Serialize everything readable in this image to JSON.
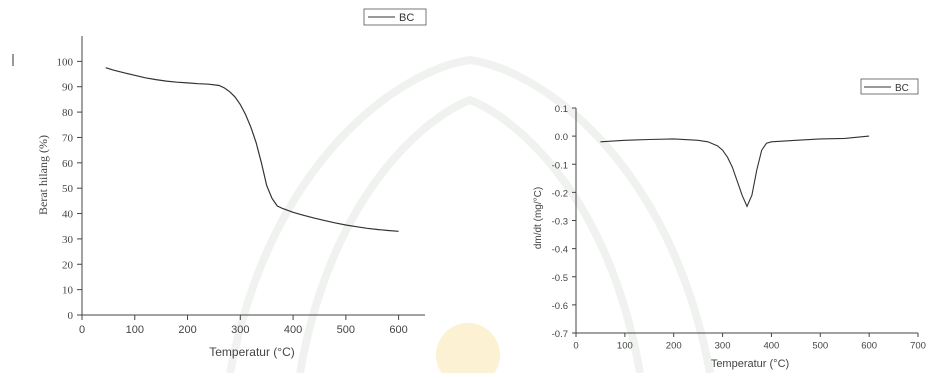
{
  "chart_data": [
    {
      "type": "line",
      "title": "",
      "xlabel": "Temperatur (°C)",
      "ylabel": "Berat hilang (%)",
      "xlim": [
        0,
        650
      ],
      "ylim": [
        0,
        110
      ],
      "x_ticks": [
        "0",
        "100",
        "200",
        "300",
        "400",
        "500",
        "600"
      ],
      "y_ticks": [
        "0",
        "10",
        "20",
        "30",
        "40",
        "50",
        "60",
        "70",
        "80",
        "90",
        "100"
      ],
      "legend": {
        "position": "top-center",
        "entries": [
          "BC"
        ]
      },
      "grid": false,
      "series": [
        {
          "name": "BC",
          "color": "#333333",
          "x": [
            45,
            60,
            80,
            100,
            120,
            140,
            160,
            180,
            200,
            220,
            240,
            260,
            270,
            280,
            290,
            300,
            310,
            320,
            330,
            340,
            350,
            360,
            370,
            380,
            400,
            420,
            440,
            460,
            480,
            500,
            520,
            540,
            560,
            580,
            600
          ],
          "y": [
            97.5,
            96.5,
            95.5,
            94.5,
            93.5,
            92.8,
            92.2,
            91.8,
            91.5,
            91.2,
            91.0,
            90.5,
            89.5,
            88.0,
            86.0,
            83.0,
            79.0,
            74.0,
            68.0,
            60.0,
            51.0,
            46.0,
            43.0,
            42.0,
            40.5,
            39.3,
            38.2,
            37.2,
            36.3,
            35.5,
            34.8,
            34.2,
            33.7,
            33.3,
            33.0
          ]
        }
      ]
    },
    {
      "type": "line",
      "title": "",
      "xlabel": "Temperatur (°C)",
      "ylabel": "dm/dt (mg/°C)",
      "xlim": [
        0,
        700
      ],
      "ylim": [
        -0.7,
        0.1
      ],
      "x_ticks": [
        "0",
        "100",
        "200",
        "300",
        "400",
        "500",
        "600",
        "700"
      ],
      "y_ticks": [
        "0.1",
        "0.0",
        "-0.1",
        "-0.2",
        "-0.3",
        "-0.4",
        "-0.5",
        "-0.6",
        "-0.7"
      ],
      "legend": {
        "position": "top-right",
        "entries": [
          "BC"
        ]
      },
      "grid": false,
      "series": [
        {
          "name": "BC",
          "color": "#333333",
          "x": [
            50,
            100,
            150,
            200,
            250,
            270,
            290,
            300,
            310,
            320,
            330,
            340,
            350,
            360,
            370,
            380,
            390,
            400,
            450,
            500,
            550,
            600
          ],
          "y": [
            -0.02,
            -0.015,
            -0.012,
            -0.01,
            -0.015,
            -0.02,
            -0.035,
            -0.05,
            -0.075,
            -0.11,
            -0.16,
            -0.21,
            -0.25,
            -0.21,
            -0.12,
            -0.05,
            -0.025,
            -0.02,
            -0.015,
            -0.01,
            -0.008,
            0.0
          ]
        }
      ]
    }
  ]
}
